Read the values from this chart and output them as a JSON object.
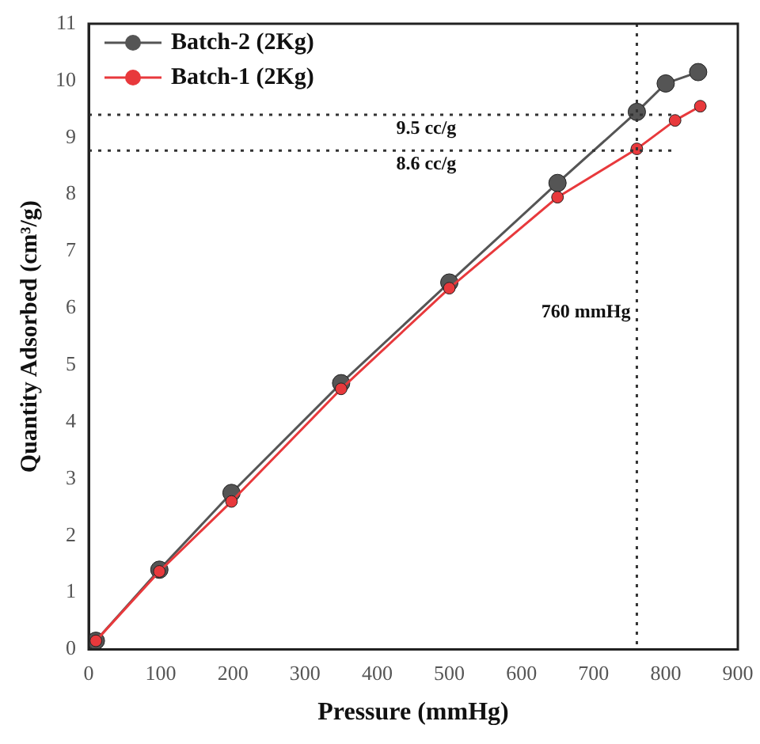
{
  "chart_data": {
    "type": "line",
    "xlabel": "Pressure (mmHg)",
    "ylabel": "Quantity Adsorbed (cm³/g)",
    "xlim": [
      0,
      900
    ],
    "xticks": [
      0,
      100,
      200,
      300,
      400,
      500,
      600,
      700,
      800,
      900
    ],
    "ylim": [
      0,
      11
    ],
    "yticks": [
      0,
      1,
      2,
      3,
      4,
      5,
      6,
      7,
      8,
      9,
      10,
      11
    ],
    "series": [
      {
        "name": "Batch-2 (2Kg)",
        "color": "#555555",
        "x": [
          10,
          98,
          198,
          350,
          500,
          650,
          760,
          800,
          845
        ],
        "values": [
          0.15,
          1.4,
          2.75,
          4.68,
          6.45,
          8.2,
          9.45,
          9.95,
          10.15
        ]
      },
      {
        "name": "Batch-1 (2Kg)",
        "color": "#e8393c",
        "x": [
          10,
          98,
          198,
          350,
          500,
          650,
          760,
          813,
          848
        ],
        "values": [
          0.15,
          1.37,
          2.6,
          4.58,
          6.35,
          7.95,
          8.8,
          9.3,
          9.55
        ]
      }
    ],
    "ref_lines": [
      {
        "axis": "y",
        "value": 9.4,
        "label": "9.5 cc/g",
        "line_style": "dotted",
        "color": "#333333"
      },
      {
        "axis": "y",
        "value": 8.77,
        "label": "8.6 cc/g",
        "line_style": "dotted",
        "color": "#333333"
      },
      {
        "axis": "x",
        "value": 760,
        "label": "760 mmHg",
        "line_style": "dotted",
        "color": "#333333"
      }
    ],
    "legend": "top left",
    "marker": "circle",
    "line_style": "solid",
    "grid": false
  }
}
